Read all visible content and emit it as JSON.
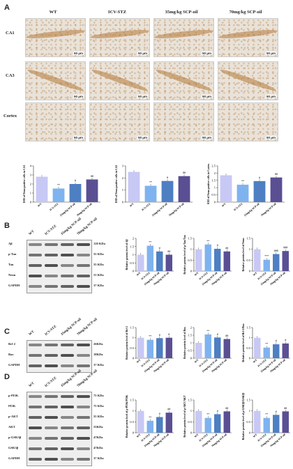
{
  "panelA": {
    "label": "A",
    "columns": [
      "WT",
      "ICV-STZ",
      "35mg/kg SCP-oil",
      "70mg/kg SCP-oil"
    ],
    "rows": [
      "CA1",
      "CA3",
      "Cortex"
    ],
    "scalebar": "50 μm"
  },
  "panelB": {
    "label": "B",
    "lanes": [
      "WT",
      "ICV-STZ",
      "35mg/kg SCP-oil",
      "70mg/kg SCP-oil"
    ],
    "blots": [
      {
        "name": "Aβ",
        "kda": "120 KDa"
      },
      {
        "name": "p-Tau",
        "kda": "55 KDa"
      },
      {
        "name": "Tau",
        "kda": "55 KDa"
      },
      {
        "name": "Neun",
        "kda": "51 KDa"
      },
      {
        "name": "GAPDH",
        "kda": "37 KDa"
      }
    ]
  },
  "panelC": {
    "label": "C",
    "lanes": [
      "WT",
      "ICV-STZ",
      "35mg/kg SCP-oil",
      "70mg/kg SCP-oil"
    ],
    "blots": [
      {
        "name": "Bcl-2",
        "kda": "26KDa"
      },
      {
        "name": "Bax",
        "kda": "18KDa"
      },
      {
        "name": "GAPDH",
        "kda": "37 KDa"
      }
    ]
  },
  "panelD": {
    "label": "D",
    "lanes": [
      "WT",
      "ICV-STZ",
      "35mg/kg SCP-oil",
      "70mg/kg SCP-oil"
    ],
    "blots": [
      {
        "name": "p-PI3K",
        "kda": "75 KDa"
      },
      {
        "name": "PI3K",
        "kda": "75 KDa"
      },
      {
        "name": "p-AKT",
        "kda": "55 KDa"
      },
      {
        "name": "AKT",
        "kda": "55KDa"
      },
      {
        "name": "p-GSK3β",
        "kda": "47KDa"
      },
      {
        "name": "GSK3β",
        "kda": "47KDa"
      },
      {
        "name": "GAPDH",
        "kda": "37 KDa"
      }
    ]
  },
  "chart_colors": [
    "#c8c8f5",
    "#7fb3ef",
    "#4d7fc2",
    "#5a4f93"
  ],
  "chart_data": [
    {
      "type": "bar",
      "id": "A1",
      "categories": [
        "WT",
        "ICV-STZ",
        "35mg/kg SCP-oil",
        "70mg/kg SCP-oil"
      ],
      "values": [
        2.8,
        1.5,
        2.0,
        2.5
      ],
      "ylabel": "IOD of Neun positive cells in CA1",
      "ylim": [
        0,
        4
      ],
      "yticks": [
        0,
        1,
        2,
        3,
        4
      ],
      "sig": [
        "",
        "**",
        "#",
        "##"
      ]
    },
    {
      "type": "bar",
      "id": "A2",
      "categories": [
        "WT",
        "ICV-STZ",
        "35mg/kg SCP-oil",
        "70mg/kg SCP-oil"
      ],
      "values": [
        2.5,
        1.35,
        1.75,
        2.15
      ],
      "ylabel": "IOD of Neun positive cells in CA3",
      "ylim": [
        0,
        3
      ],
      "yticks": [
        0,
        1,
        2,
        3
      ],
      "sig": [
        "",
        "**",
        "#",
        "##"
      ]
    },
    {
      "type": "bar",
      "id": "A3",
      "categories": [
        "WT",
        "ICV-STZ",
        "35mg/kg SCP-oil",
        "70mg/kg SCP-oil"
      ],
      "values": [
        1.85,
        1.2,
        1.45,
        1.7
      ],
      "ylabel": "IOD of Neun positive cells in Cortex",
      "ylim": [
        0,
        2.5
      ],
      "yticks": [
        0,
        0.5,
        1,
        1.5,
        2,
        2.5
      ],
      "sig": [
        "",
        "**",
        "#",
        "##"
      ]
    },
    {
      "type": "bar",
      "id": "B1",
      "categories": [
        "WT",
        "ICV-STZ",
        "35mg/kg SCP-oil",
        "70mg/kg SCP-oil"
      ],
      "values": [
        1.0,
        1.55,
        1.2,
        1.0
      ],
      "ylabel": "Relative protein level of Aβ",
      "ylim": [
        0,
        2
      ],
      "yticks": [
        0,
        0.5,
        1,
        1.5,
        2
      ],
      "sig": [
        "",
        "**",
        "#",
        "##"
      ]
    },
    {
      "type": "bar",
      "id": "B2",
      "categories": [
        "WT",
        "ICV-STZ",
        "35mg/kg SCP-oil",
        "70mg/kg SCP-oil"
      ],
      "values": [
        1.0,
        1.22,
        1.02,
        0.9
      ],
      "ylabel": "Relative protein level of p-Tau/Tau",
      "ylim": [
        0,
        1.5
      ],
      "yticks": [
        0,
        0.5,
        1,
        1.5
      ],
      "sig": [
        "",
        "**",
        "#",
        "##"
      ]
    },
    {
      "type": "bar",
      "id": "B3",
      "categories": [
        "WT",
        "ICV-STZ",
        "35mg/kg SCP-oil",
        "70mg/kg SCP-oil"
      ],
      "values": [
        1.0,
        0.52,
        0.78,
        0.92
      ],
      "ylabel": "Relative protein level of Neun",
      "ylim": [
        0,
        1.5
      ],
      "yticks": [
        0,
        0.5,
        1,
        1.5
      ],
      "sig": [
        "",
        "***",
        "###",
        "###"
      ]
    },
    {
      "type": "bar",
      "id": "C1",
      "categories": [
        "WT",
        "ICV-STZ",
        "35mg/kg SCP-oil",
        "70mg/kg SCP-oil"
      ],
      "values": [
        1.0,
        0.9,
        0.98,
        1.0
      ],
      "ylabel": "Relative protein level of Bcl-2",
      "ylim": [
        0,
        1.5
      ],
      "yticks": [
        0,
        0.5,
        1,
        1.5
      ],
      "sig": [
        "",
        "**",
        "#",
        "#"
      ]
    },
    {
      "type": "bar",
      "id": "C2",
      "categories": [
        "WT",
        "ICV-STZ",
        "35mg/kg SCP-oil",
        "70mg/kg SCP-oil"
      ],
      "values": [
        1.0,
        1.55,
        1.35,
        1.25
      ],
      "ylabel": "Relative protein level of Bax",
      "ylim": [
        0,
        2
      ],
      "yticks": [
        0,
        0.5,
        1,
        1.5,
        2
      ],
      "sig": [
        "",
        "**",
        "#",
        "##"
      ]
    },
    {
      "type": "bar",
      "id": "C3",
      "categories": [
        "WT",
        "ICV-STZ",
        "35mg/kg SCP-oil",
        "70mg/kg SCP-oil"
      ],
      "values": [
        1.0,
        0.52,
        0.68,
        0.72
      ],
      "ylabel": "Relative protein level of Bcl-2/Bax",
      "ylim": [
        0,
        1.5
      ],
      "yticks": [
        0,
        0.5,
        1,
        1.5
      ],
      "sig": [
        "",
        "**",
        "#",
        "#"
      ]
    },
    {
      "type": "bar",
      "id": "D1",
      "categories": [
        "WT",
        "ICV-STZ",
        "35mg/kg SCP-oil",
        "70mg/kg SCP-oil"
      ],
      "values": [
        1.0,
        0.55,
        0.72,
        0.92
      ],
      "ylabel": "Relative protein level of p-PI3K/PI3K",
      "ylim": [
        0,
        1.5
      ],
      "yticks": [
        0,
        0.5,
        1,
        1.5
      ],
      "sig": [
        "",
        "**",
        "#",
        "##"
      ]
    },
    {
      "type": "bar",
      "id": "D2",
      "categories": [
        "WT",
        "ICV-STZ",
        "35mg/kg SCP-oil",
        "70mg/kg SCP-oil"
      ],
      "values": [
        1.0,
        0.68,
        0.85,
        0.98
      ],
      "ylabel": "Relative protein level of p-AKT/AKT",
      "ylim": [
        0,
        1.5
      ],
      "yticks": [
        0,
        0.5,
        1,
        1.5
      ],
      "sig": [
        "",
        "**",
        "#",
        "##"
      ]
    },
    {
      "type": "bar",
      "id": "D3",
      "categories": [
        "WT",
        "ICV-STZ",
        "35mg/kg SCP-oil",
        "70mg/kg SCP-oil"
      ],
      "values": [
        1.0,
        0.68,
        0.82,
        0.98
      ],
      "ylabel": "Relative protein level of p-GSK3β/GSK3β",
      "ylim": [
        0,
        1.5
      ],
      "yticks": [
        0,
        0.5,
        1,
        1.5
      ],
      "sig": [
        "",
        "**",
        "#",
        "##"
      ]
    }
  ]
}
